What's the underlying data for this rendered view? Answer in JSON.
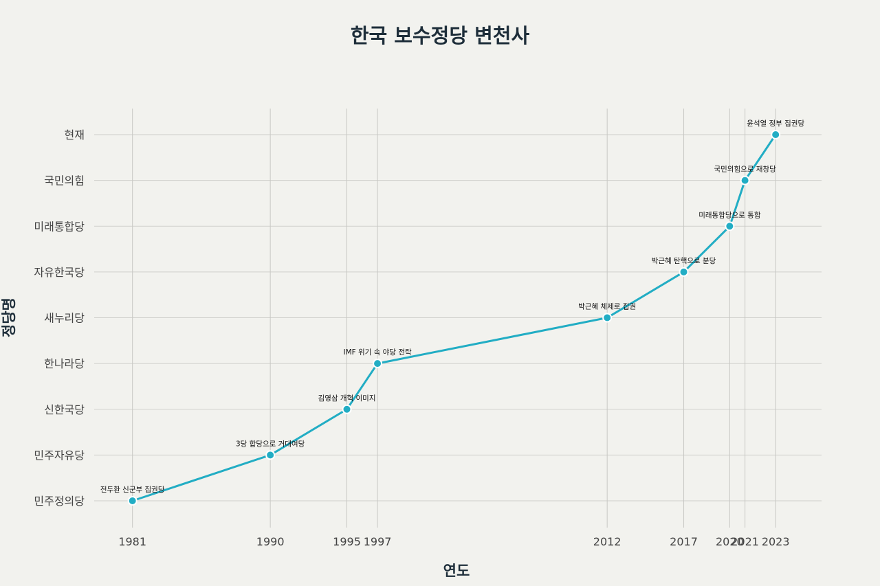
{
  "chart_data": {
    "type": "line",
    "title": "한국 보수정당 변천사",
    "xlabel": "연도",
    "ylabel": "정당명",
    "x_ticks": [
      1981,
      1990,
      1995,
      1997,
      2012,
      2017,
      2020,
      2021,
      2023
    ],
    "xlim": [
      1978.5,
      2026
    ],
    "y_categories": [
      "민주정의당",
      "민주자유당",
      "신한국당",
      "한나라당",
      "새누리당",
      "자유한국당",
      "미래통합당",
      "국민의힘",
      "현재"
    ],
    "points": [
      {
        "x": 1981,
        "y": "민주정의당",
        "label": "전두환 신군부 집권당"
      },
      {
        "x": 1990,
        "y": "민주자유당",
        "label": "3당 합당으로 거대여당"
      },
      {
        "x": 1995,
        "y": "신한국당",
        "label": "김영삼 개혁 이미지"
      },
      {
        "x": 1997,
        "y": "한나라당",
        "label": "IMF 위기 속 야당 전락"
      },
      {
        "x": 2012,
        "y": "새누리당",
        "label": "박근혜 체제로 집권"
      },
      {
        "x": 2017,
        "y": "자유한국당",
        "label": "박근혜 탄핵으로 분당"
      },
      {
        "x": 2020,
        "y": "미래통합당",
        "label": "미래통합당으로 통합"
      },
      {
        "x": 2021,
        "y": "국민의힘",
        "label": "국민의힘으로 재창당"
      },
      {
        "x": 2023,
        "y": "현재",
        "label": "윤석열 정부 집권당"
      }
    ],
    "grid": true,
    "colors": {
      "line": "#22adc4",
      "marker_outline": "#ffffff",
      "background": "#f2f2ee",
      "grid": "#cfcfcb"
    }
  }
}
